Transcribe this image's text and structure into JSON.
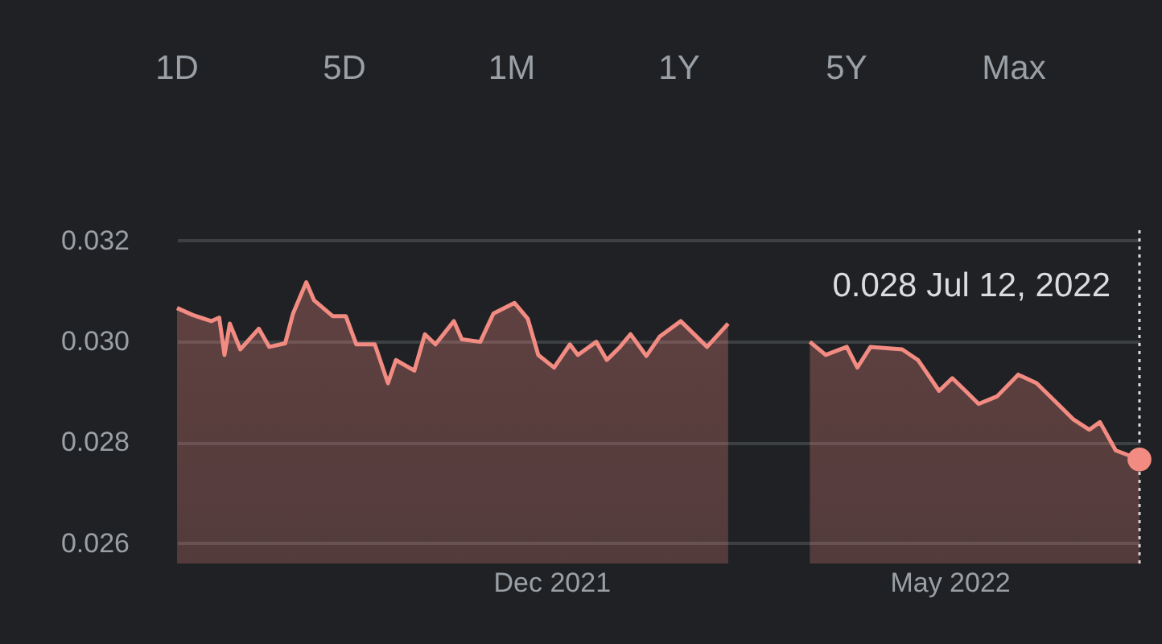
{
  "chart_data": {
    "type": "area",
    "annotations": [
      "1D",
      "5D",
      "1M",
      "1Y",
      "5Y",
      "Max",
      "0.028  Jul 12, 2022"
    ],
    "series": [
      {
        "color": "#f28b82",
        "x": [
          "2021-07-12",
          "2021-07-18",
          "2021-07-25",
          "2021-07-28",
          "2021-07-30",
          "2021-08-01",
          "2021-08-05",
          "2021-08-12",
          "2021-08-16",
          "2021-08-22",
          "2021-08-25",
          "2021-08-30",
          "2021-09-02",
          "2021-09-09",
          "2021-09-14",
          "2021-09-18",
          "2021-09-25",
          "2021-09-30",
          "2021-10-03",
          "2021-10-10",
          "2021-10-14",
          "2021-10-18",
          "2021-10-25",
          "2021-10-28",
          "2021-11-04",
          "2021-11-09",
          "2021-11-17",
          "2021-11-22",
          "2021-11-26",
          "2021-12-02",
          "2021-12-08",
          "2021-12-11",
          "2021-12-18",
          "2021-12-22",
          "2021-12-27",
          "2021-12-31",
          "2022-01-06",
          "2022-01-11",
          "2022-01-19",
          "2022-01-29",
          "2022-02-06",
          "2022-02-17",
          "2022-03-09",
          "2022-03-15",
          "2022-03-23",
          "2022-03-27",
          "2022-04-01",
          "2022-04-13",
          "2022-04-19",
          "2022-04-27",
          "2022-05-02",
          "2022-05-07",
          "2022-05-12",
          "2022-05-19",
          "2022-05-27",
          "2022-06-03",
          "2022-06-11",
          "2022-06-17",
          "2022-06-23",
          "2022-06-27",
          "2022-07-03",
          "2022-07-12"
        ],
        "values": [
          0.03066,
          0.03052,
          0.0304,
          0.03047,
          0.02973,
          0.03035,
          0.02984,
          0.03025,
          0.02989,
          0.02996,
          0.03055,
          0.03117,
          0.03081,
          0.0305,
          0.0305,
          0.02994,
          0.02994,
          0.02917,
          0.02963,
          0.02942,
          0.03014,
          0.02994,
          0.0304,
          0.03004,
          0.02999,
          0.03055,
          0.03076,
          0.03045,
          0.02973,
          0.02948,
          0.02994,
          0.02973,
          0.02999,
          0.02963,
          0.02989,
          0.03014,
          0.02971,
          0.03009,
          0.0304,
          0.02989,
          0.03035,
          null,
          0.02999,
          0.02973,
          0.02989,
          0.02948,
          0.02989,
          0.02984,
          0.02963,
          0.02902,
          0.02927,
          0.02902,
          0.02876,
          0.02891,
          0.02934,
          0.02917,
          0.02876,
          0.02845,
          0.02825,
          0.0284,
          0.02784,
          0.02766
        ]
      },
      {
        "type": "scatter",
        "marker": "circle",
        "color": "#f28b82",
        "x": [
          "2022-07-12"
        ],
        "values": [
          0.02766
        ]
      }
    ],
    "xlim": [
      "2021-07-12",
      "2022-07-12"
    ],
    "xticks": [
      {
        "value": "2021-12-01",
        "label": "Dec 2021"
      },
      {
        "value": "2022-05-01",
        "label": "May 2022"
      }
    ],
    "ylim": [
      0.0256,
      0.0322
    ],
    "yticks": [
      {
        "value": 0.026,
        "label": "0.026"
      },
      {
        "value": 0.028,
        "label": "0.028"
      },
      {
        "value": 0.03,
        "label": "0.030"
      },
      {
        "value": 0.032,
        "label": "0.032"
      }
    ],
    "grid": "y",
    "ref_lines": [
      {
        "axis": "x",
        "value": "2022-07-12",
        "color": "#dadce0",
        "line_style": "dotted"
      }
    ]
  }
}
